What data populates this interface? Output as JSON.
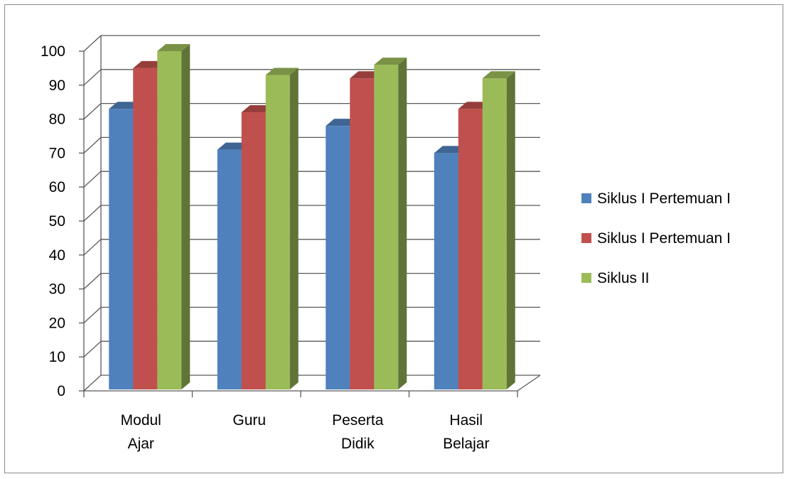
{
  "chart_data": {
    "type": "bar",
    "style": "3d-clustered-column",
    "categories": [
      [
        "Modul",
        "Ajar"
      ],
      [
        "Guru"
      ],
      [
        "Peserta",
        "Didik"
      ],
      [
        "Hasil",
        "Belajar"
      ]
    ],
    "series": [
      {
        "name": "Siklus I Pertemuan I",
        "color": "#4f81bd",
        "values": [
          83,
          71,
          78,
          70
        ]
      },
      {
        "name": "Siklus I Pertemuan I",
        "color": "#c0504d",
        "values": [
          95,
          82,
          92,
          83
        ]
      },
      {
        "name": "Siklus II",
        "color": "#9bbb59",
        "values": [
          100,
          93,
          96,
          92
        ]
      }
    ],
    "ylim": [
      0,
      100
    ],
    "yticks": [
      "0",
      "10",
      "20",
      "30",
      "40",
      "50",
      "60",
      "70",
      "80",
      "90",
      "100"
    ],
    "grid": true,
    "legend": "right",
    "title": "",
    "xlabel": "",
    "ylabel": ""
  }
}
